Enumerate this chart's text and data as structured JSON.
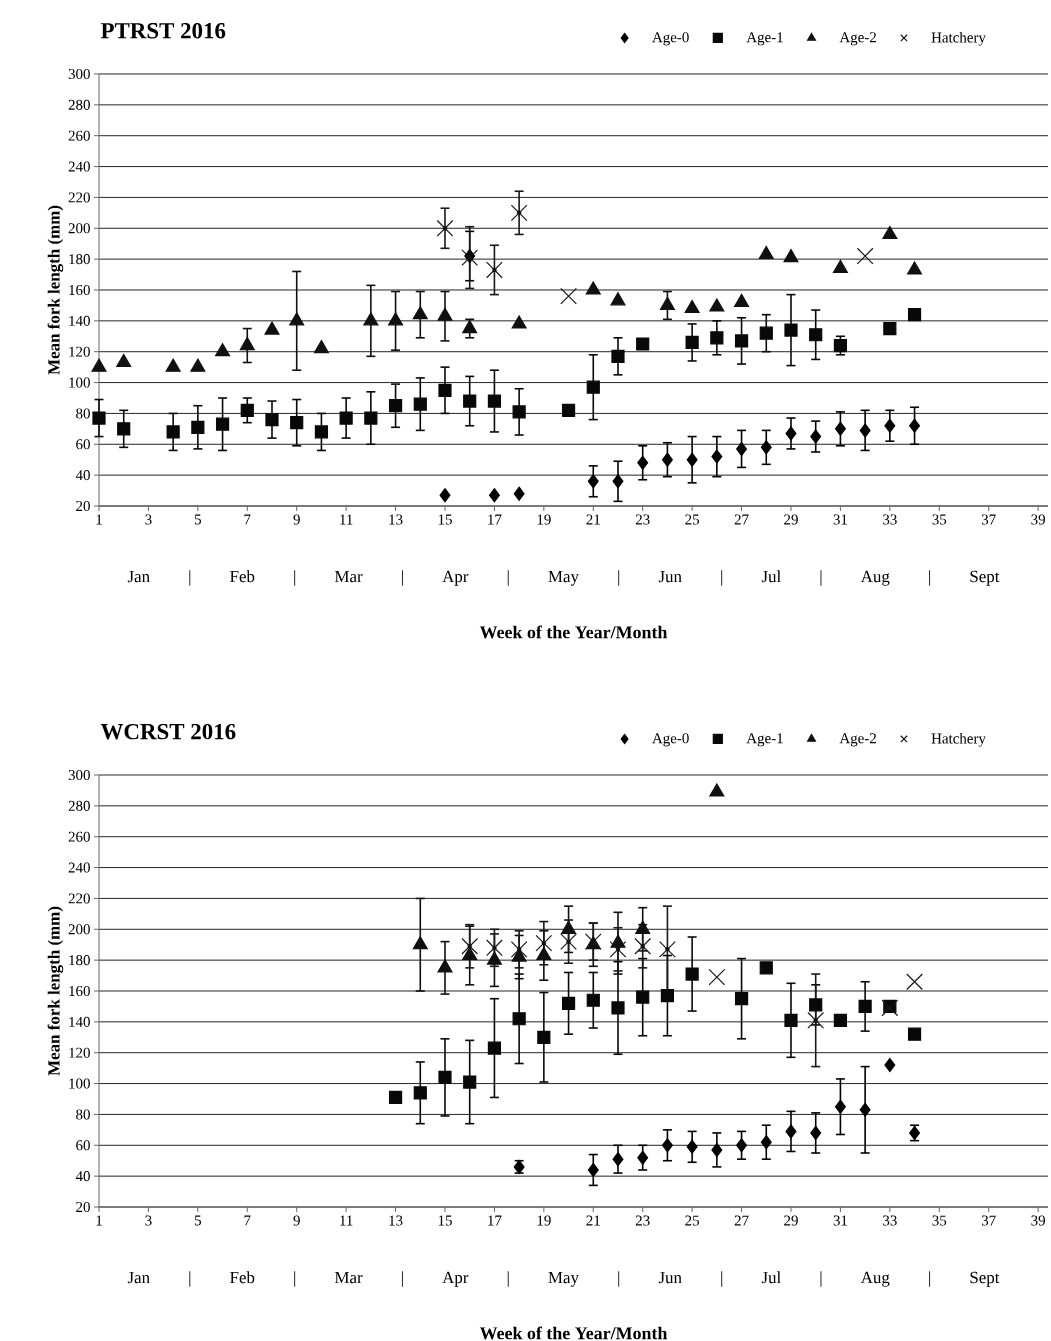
{
  "chart_data": [
    {
      "type": "scatter",
      "title": "PTRST 2016",
      "xlabel": "Week of the Year/Month",
      "ylabel": "Mean fork length (mm)",
      "annotations": [
        "Jan | Feb | Mar | Apr | May | Jun | Jul | Aug | Sept"
      ],
      "xlim": [
        1,
        39.4
      ],
      "xticks": [
        1,
        3,
        5,
        7,
        9,
        11,
        13,
        15,
        17,
        19,
        21,
        23,
        25,
        27,
        29,
        31,
        33,
        35,
        37,
        39
      ],
      "ylim": [
        20,
        300
      ],
      "yticks": [
        20,
        40,
        60,
        80,
        100,
        120,
        140,
        160,
        180,
        200,
        220,
        240,
        260,
        280,
        300
      ],
      "grid": "y",
      "legend": "top right",
      "series": [
        {
          "name": "Age-0",
          "color": "#000000",
          "marker": "diamond",
          "x": [
            15,
            16,
            17,
            18,
            21,
            22,
            23,
            24,
            25,
            26,
            27,
            28,
            29,
            30,
            31,
            32,
            33,
            34
          ],
          "values": [
            27,
            182,
            27,
            28,
            36,
            36,
            48,
            50,
            50,
            52,
            57,
            58,
            67,
            65,
            70,
            69,
            72,
            72
          ],
          "errors": [
            null,
            16,
            null,
            null,
            10,
            13,
            11,
            11,
            15,
            13,
            12,
            11,
            10,
            10,
            11,
            13,
            10,
            12
          ]
        },
        {
          "name": "Age-1",
          "color": "#080808",
          "marker": "square",
          "x": [
            1,
            2,
            4,
            5,
            6,
            7,
            8,
            9,
            10,
            11,
            12,
            13,
            14,
            15,
            16,
            17,
            18,
            20,
            21,
            22,
            23,
            25,
            26,
            27,
            28,
            29,
            30,
            31,
            33,
            34
          ],
          "values": [
            77,
            70,
            68,
            71,
            73,
            82,
            76,
            74,
            68,
            77,
            77,
            85,
            86,
            95,
            88,
            88,
            81,
            82,
            97,
            117,
            125,
            126,
            129,
            127,
            132,
            134,
            131,
            124,
            135,
            144
          ],
          "errors": [
            12,
            12,
            12,
            14,
            17,
            8,
            12,
            15,
            12,
            13,
            17,
            14,
            17,
            15,
            16,
            20,
            15,
            null,
            21,
            12,
            null,
            12,
            11,
            15,
            12,
            23,
            16,
            6,
            null,
            null
          ]
        },
        {
          "name": "Age-2",
          "color": "#101010",
          "marker": "triangle",
          "x": [
            1,
            2,
            4,
            5,
            6,
            7,
            8,
            9,
            10,
            12,
            13,
            14,
            15,
            16,
            18,
            21,
            22,
            24,
            25,
            26,
            27,
            28,
            29,
            31,
            33,
            34
          ],
          "values": [
            110,
            113,
            110,
            110,
            120,
            124,
            134,
            140,
            122,
            140,
            140,
            144,
            143,
            135,
            138,
            160,
            153,
            150,
            148,
            149,
            152,
            183,
            181,
            174,
            196,
            173
          ],
          "errors": [
            null,
            null,
            null,
            null,
            null,
            11,
            null,
            32,
            null,
            23,
            19,
            15,
            16,
            6,
            null,
            null,
            null,
            9,
            null,
            null,
            null,
            null,
            null,
            null,
            null,
            null
          ]
        },
        {
          "name": "Hatchery",
          "color": "#181818",
          "marker": "cross",
          "x": [
            15,
            16,
            17,
            18,
            20,
            32
          ],
          "values": [
            200,
            181,
            173,
            210,
            156,
            182
          ],
          "errors": [
            13,
            20,
            16,
            14,
            null,
            null
          ]
        }
      ]
    },
    {
      "type": "scatter",
      "title": "WCRST 2016",
      "xlabel": "Week of the Year/Month",
      "ylabel": "Mean fork length (mm)",
      "annotations": [
        "Jan | Feb | Mar | Apr | May | Jun | Jul | Aug | Sept"
      ],
      "xlim": [
        1,
        39.4
      ],
      "xticks": [
        1,
        3,
        5,
        7,
        9,
        11,
        13,
        15,
        17,
        19,
        21,
        23,
        25,
        27,
        29,
        31,
        33,
        35,
        37,
        39
      ],
      "ylim": [
        20,
        300
      ],
      "yticks": [
        20,
        40,
        60,
        80,
        100,
        120,
        140,
        160,
        180,
        200,
        220,
        240,
        260,
        280,
        300
      ],
      "grid": "y",
      "legend": "top right",
      "series": [
        {
          "name": "Age-0",
          "color": "#000000",
          "marker": "diamond",
          "x": [
            18,
            21,
            22,
            23,
            24,
            25,
            26,
            27,
            28,
            29,
            30,
            31,
            32,
            33,
            34
          ],
          "values": [
            46,
            44,
            51,
            52,
            60,
            59,
            57,
            60,
            62,
            69,
            68,
            85,
            83,
            112,
            68
          ],
          "errors": [
            4,
            10,
            9,
            8,
            10,
            10,
            11,
            9,
            11,
            13,
            13,
            18,
            28,
            null,
            5
          ]
        },
        {
          "name": "Age-1",
          "color": "#080808",
          "marker": "square",
          "x": [
            13,
            14,
            15,
            16,
            17,
            18,
            19,
            20,
            21,
            22,
            23,
            24,
            25,
            27,
            28,
            29,
            30,
            31,
            32,
            33,
            34
          ],
          "values": [
            91,
            94,
            104,
            101,
            123,
            142,
            130,
            152,
            154,
            149,
            156,
            157,
            171,
            155,
            175,
            141,
            151,
            141,
            150,
            150,
            132
          ],
          "errors": [
            null,
            20,
            25,
            27,
            32,
            29,
            29,
            20,
            18,
            30,
            25,
            26,
            24,
            26,
            null,
            24,
            13,
            null,
            16,
            null,
            null
          ]
        },
        {
          "name": "Age-2",
          "color": "#101010",
          "marker": "triangle",
          "x": [
            14,
            15,
            16,
            17,
            18,
            19,
            20,
            21,
            22,
            23,
            26
          ],
          "values": [
            190,
            175,
            183,
            180,
            182,
            183,
            200,
            190,
            191,
            200,
            289
          ],
          "errors": [
            30,
            17,
            19,
            17,
            14,
            16,
            15,
            14,
            20,
            14,
            null
          ]
        },
        {
          "name": "Hatchery",
          "color": "#181818",
          "marker": "cross",
          "x": [
            16,
            17,
            18,
            19,
            20,
            21,
            22,
            23,
            24,
            26,
            30,
            33,
            34
          ],
          "values": [
            189,
            188,
            187,
            191,
            192,
            192,
            187,
            189,
            187,
            169,
            141,
            149,
            166
          ],
          "errors": [
            14,
            12,
            12,
            14,
            14,
            12,
            14,
            14,
            28,
            null,
            30,
            null,
            null
          ]
        }
      ]
    }
  ]
}
